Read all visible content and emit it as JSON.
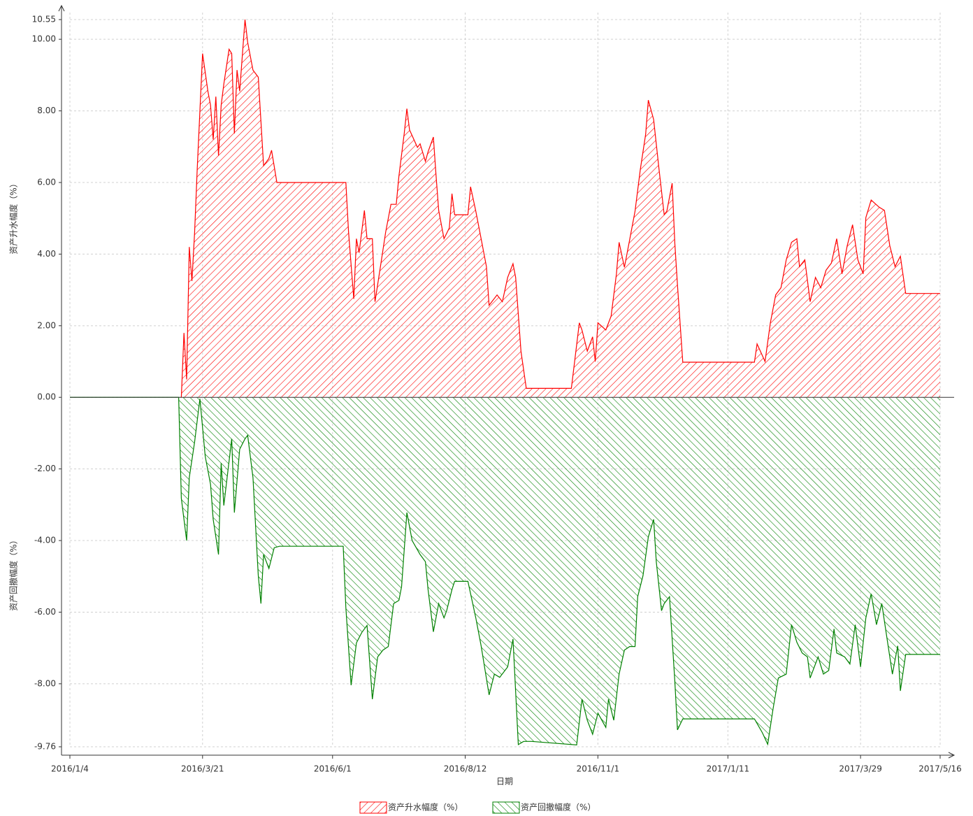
{
  "chart_data": {
    "type": "area",
    "x_label": "日期",
    "y_label_top": "资产升水幅度（%）",
    "y_label_bottom": "资产回撤幅度（%）",
    "xlim": [
      0,
      328
    ],
    "xticks": [
      {
        "value": 0,
        "label": "2016/1/4"
      },
      {
        "value": 50,
        "label": "2016/3/21"
      },
      {
        "value": 99,
        "label": "2016/6/1"
      },
      {
        "value": 149,
        "label": "2016/8/12"
      },
      {
        "value": 199,
        "label": "2016/11/1"
      },
      {
        "value": 248,
        "label": "2017/1/11"
      },
      {
        "value": 298,
        "label": "2017/3/29"
      },
      {
        "value": 328,
        "label": "2017/5/16"
      }
    ],
    "ylim": [
      -9.76,
      10.55
    ],
    "yticks": [
      10.55,
      {
        "value": 10,
        "label": "10.00"
      },
      {
        "value": 8,
        "label": "8.00"
      },
      {
        "value": 6,
        "label": "6.00"
      },
      {
        "value": 4,
        "label": "4.00"
      },
      {
        "value": 2,
        "label": "2.00"
      },
      {
        "value": 0,
        "label": "0.00"
      },
      {
        "value": -2,
        "label": "-2.00"
      },
      {
        "value": -4,
        "label": "-4.00"
      },
      {
        "value": -6,
        "label": "-6.00"
      },
      {
        "value": -8,
        "label": "-8.00"
      },
      -9.76
    ],
    "grid": true,
    "legend": "bottom",
    "series": [
      {
        "name": "资产升水幅度（%）",
        "color": "#ff0000",
        "x": [
          42,
          43,
          44,
          45,
          46,
          47,
          48,
          50,
          52,
          53,
          54,
          55,
          56,
          57,
          58,
          60,
          61,
          62,
          63,
          64,
          66,
          67,
          69,
          71,
          73,
          75,
          76,
          78,
          104,
          105,
          107,
          108,
          109,
          111,
          112,
          114,
          115,
          117,
          119,
          121,
          123,
          124,
          126,
          127,
          128,
          131,
          132,
          134,
          135,
          137,
          138,
          139,
          141,
          143,
          144,
          145,
          150,
          151,
          153,
          155,
          157,
          158,
          161,
          163,
          165,
          167,
          168,
          170,
          172,
          189,
          192,
          193,
          195,
          197,
          198,
          199,
          202,
          204,
          206,
          207,
          209,
          211,
          213,
          215,
          217,
          218,
          220,
          222,
          224,
          225,
          227,
          228,
          229,
          231,
          258,
          259,
          262,
          264,
          266,
          268,
          270,
          272,
          274,
          275,
          277,
          279,
          281,
          283,
          285,
          287,
          289,
          291,
          293,
          295,
          297,
          299,
          300,
          302,
          305,
          307,
          309,
          311,
          313,
          315,
          328
        ],
        "values": [
          0,
          1.8,
          0.5,
          4.2,
          3.25,
          4.6,
          6.4,
          9.6,
          8.55,
          8.16,
          7.2,
          8.4,
          6.75,
          8.16,
          8.75,
          9.72,
          9.6,
          7.37,
          9.14,
          8.55,
          10.55,
          9.92,
          9.14,
          8.94,
          6.47,
          6.67,
          6.9,
          6,
          6,
          4.63,
          2.75,
          4.43,
          4.04,
          5.22,
          4.43,
          4.43,
          2.67,
          3.63,
          4.61,
          5.39,
          5.39,
          6.18,
          7.37,
          8.06,
          7.47,
          6.98,
          7.08,
          6.59,
          6.86,
          7.27,
          6.2,
          5.22,
          4.43,
          4.73,
          5.69,
          5.1,
          5.1,
          5.88,
          5.2,
          4.43,
          3.65,
          2.57,
          2.86,
          2.67,
          3.35,
          3.73,
          3.35,
          1.29,
          0.25,
          0.25,
          2.08,
          1.88,
          1.29,
          1.69,
          1,
          2.08,
          1.88,
          2.27,
          3.45,
          4.33,
          3.63,
          4.41,
          5.2,
          6.37,
          7.35,
          8.3,
          7.76,
          6.39,
          5.1,
          5.2,
          5.98,
          4.31,
          3.14,
          0.98,
          0.98,
          1.49,
          1,
          2.08,
          2.86,
          3.06,
          3.84,
          4.33,
          4.43,
          3.65,
          3.84,
          2.67,
          3.35,
          3.06,
          3.55,
          3.75,
          4.43,
          3.45,
          4.24,
          4.82,
          3.84,
          3.45,
          5.02,
          5.51,
          5.31,
          5.22,
          4.24,
          3.65,
          3.94,
          2.9,
          2.9
        ]
      },
      {
        "name": "资产回撤幅度（%）",
        "color": "#008000",
        "x": [
          0,
          41,
          42,
          44,
          45,
          47,
          49,
          51,
          53,
          54,
          56,
          57,
          58,
          61,
          62,
          64,
          66,
          67,
          69,
          71,
          72,
          73,
          75,
          77,
          79,
          103,
          104,
          106,
          108,
          110,
          112,
          114,
          116,
          118,
          120,
          122,
          124,
          125,
          127,
          129,
          132,
          134,
          135,
          137,
          139,
          141,
          142,
          144,
          145,
          150,
          153,
          155,
          158,
          160,
          162,
          165,
          167,
          169,
          171,
          174,
          191,
          193,
          195,
          197,
          199,
          202,
          203,
          205,
          207,
          209,
          211,
          213,
          214,
          216,
          218,
          220,
          221,
          223,
          224,
          226,
          228,
          229,
          231,
          258,
          261,
          263,
          265,
          267,
          270,
          272,
          274,
          276,
          278,
          279,
          282,
          284,
          286,
          288,
          289,
          292,
          294,
          296,
          298,
          300,
          302,
          304,
          306,
          308,
          310,
          312,
          313,
          315,
          328
        ],
        "values": [
          0,
          0,
          -2.82,
          -4,
          -2.24,
          -1.25,
          -0.04,
          -1.65,
          -2.43,
          -3.41,
          -4.39,
          -1.84,
          -3.02,
          -1.16,
          -3.22,
          -1.45,
          -1.16,
          -1.06,
          -2.24,
          -4.98,
          -5.76,
          -4.39,
          -4.78,
          -4.2,
          -4.16,
          -4.16,
          -5.88,
          -8.04,
          -6.86,
          -6.57,
          -6.37,
          -8.43,
          -7.25,
          -7.06,
          -6.96,
          -5.76,
          -5.67,
          -5.29,
          -3.22,
          -4,
          -4.39,
          -4.59,
          -5.37,
          -6.55,
          -5.76,
          -6.16,
          -5.96,
          -5.37,
          -5.14,
          -5.14,
          -6.16,
          -6.94,
          -8.31,
          -7.73,
          -7.82,
          -7.53,
          -6.75,
          -9.7,
          -9.61,
          -9.61,
          -9.71,
          -8.43,
          -9.02,
          -9.41,
          -8.82,
          -9.22,
          -8.43,
          -9.02,
          -7.73,
          -7.06,
          -6.96,
          -6.96,
          -5.57,
          -4.98,
          -3.9,
          -3.41,
          -4.59,
          -5.96,
          -5.76,
          -5.57,
          -7.92,
          -9.29,
          -8.98,
          -8.98,
          -9.37,
          -9.69,
          -8.71,
          -7.84,
          -7.73,
          -6.35,
          -6.84,
          -7.14,
          -7.25,
          -7.84,
          -7.25,
          -7.73,
          -7.63,
          -6.47,
          -7.14,
          -7.25,
          -7.45,
          -6.35,
          -7.53,
          -6.16,
          -5.49,
          -6.35,
          -5.76,
          -6.75,
          -7.73,
          -6.94,
          -8.2,
          -7.18,
          -7.18
        ]
      }
    ]
  }
}
